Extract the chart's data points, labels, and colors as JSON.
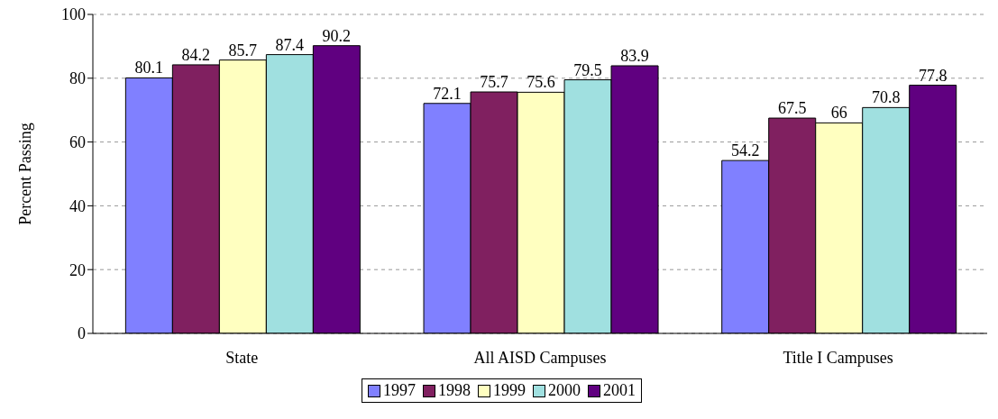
{
  "chart_data": {
    "type": "bar",
    "ylabel": "Percent Passing",
    "categories": [
      "State",
      "All AISD Campuses",
      "Title I Campuses"
    ],
    "series": [
      {
        "name": "1997",
        "color": "#8080ff",
        "values": [
          80.1,
          72.1,
          54.2
        ]
      },
      {
        "name": "1998",
        "color": "#802060",
        "values": [
          84.2,
          75.7,
          67.5
        ]
      },
      {
        "name": "1999",
        "color": "#ffffc0",
        "values": [
          85.7,
          75.6,
          66
        ]
      },
      {
        "name": "2000",
        "color": "#a0e0e0",
        "values": [
          87.4,
          79.5,
          70.8
        ]
      },
      {
        "name": "2001",
        "color": "#600080",
        "values": [
          90.2,
          83.9,
          77.8
        ]
      }
    ],
    "ylim": [
      0,
      100
    ],
    "yticks": [
      0,
      20,
      40,
      60,
      80,
      100
    ],
    "grid": "y",
    "legend": "bottom",
    "data_labels": true
  }
}
